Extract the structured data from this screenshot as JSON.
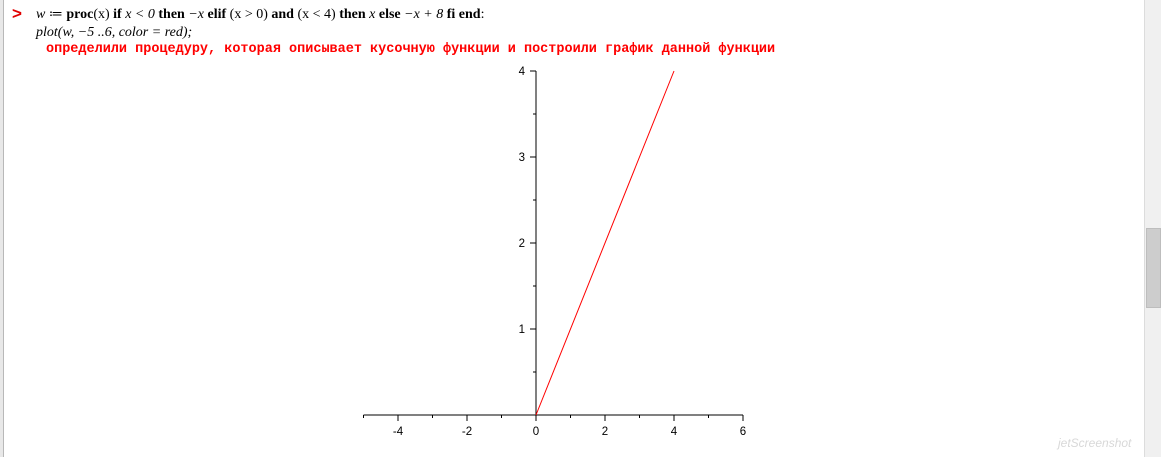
{
  "worksheet": {
    "prompt": ">",
    "line1": {
      "w": "w",
      "assign": " ≔ ",
      "proc": "proc",
      "open_x": "(x)",
      "if": " if ",
      "cond1": "x < 0",
      "then1": " then ",
      "neg_x": "−x",
      "elif": " elif ",
      "cond2": "(x > 0)",
      "and": " and ",
      "cond3": "(x < 4)",
      "then2": " then ",
      "x": "x",
      "else": " else ",
      "expr": "−x + 8",
      "fi_end": " fi end",
      "colon": ":"
    },
    "line2": {
      "plot": "plot",
      "args": "(w, −5 ..6, color = red);"
    },
    "comment": "определили процедуру, которая описывает кусочную функции и построили график данной функции"
  },
  "chart_data": {
    "type": "line",
    "series": [
      {
        "x": [
          0,
          4
        ],
        "y": [
          0,
          4
        ],
        "color": "#ff0000"
      }
    ],
    "xlim": [
      -5,
      6
    ],
    "ylim": [
      0,
      4
    ],
    "x_ticks": [
      "-4",
      "-2",
      "0",
      "2",
      "4",
      "6"
    ],
    "y_ticks": [
      "1",
      "2",
      "3",
      "4"
    ],
    "grid": false,
    "title": "",
    "xlabel": "",
    "ylabel": ""
  },
  "watermark": "jetScreenshot"
}
